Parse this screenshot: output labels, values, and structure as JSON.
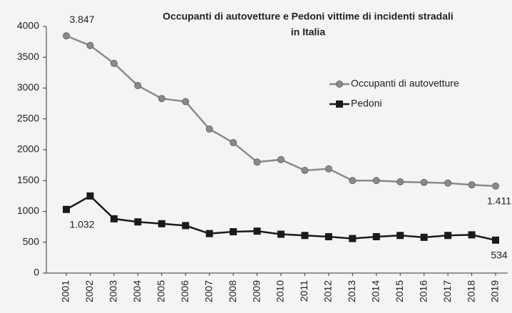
{
  "chart_data": {
    "type": "line",
    "title": [
      "Occupanti di autovetture e Pedoni vittime di incidenti stradali",
      "in Italia"
    ],
    "categories": [
      "2001",
      "2002",
      "2003",
      "2004",
      "2005",
      "2006",
      "2007",
      "2008",
      "2009",
      "2010",
      "2011",
      "2012",
      "2013",
      "2014",
      "2015",
      "2016",
      "2017",
      "2018",
      "2019"
    ],
    "series": [
      {
        "name": "Occupanti di autovetture",
        "color": "#8a8a8a",
        "marker": "circle",
        "values": [
          3847,
          3690,
          3400,
          3040,
          2830,
          2780,
          2335,
          2115,
          1800,
          1840,
          1665,
          1690,
          1500,
          1500,
          1480,
          1470,
          1460,
          1430,
          1411
        ],
        "value_labels": [
          "3.847",
          null,
          null,
          null,
          null,
          null,
          null,
          null,
          null,
          null,
          null,
          null,
          null,
          null,
          null,
          null,
          null,
          null,
          "1.411"
        ]
      },
      {
        "name": "Pedoni",
        "color": "#1a1a1a",
        "marker": "square",
        "values": [
          1032,
          1250,
          880,
          830,
          800,
          770,
          640,
          670,
          680,
          630,
          610,
          590,
          560,
          590,
          610,
          580,
          610,
          620,
          534
        ],
        "value_labels": [
          "1.032",
          null,
          null,
          null,
          null,
          null,
          null,
          null,
          null,
          null,
          null,
          null,
          null,
          null,
          null,
          null,
          null,
          null,
          "534"
        ]
      }
    ],
    "ylim": [
      0,
      4000
    ],
    "yticks": [
      0,
      500,
      1000,
      1500,
      2000,
      2500,
      3000,
      3500,
      4000
    ],
    "grid": false,
    "legend": "right"
  }
}
